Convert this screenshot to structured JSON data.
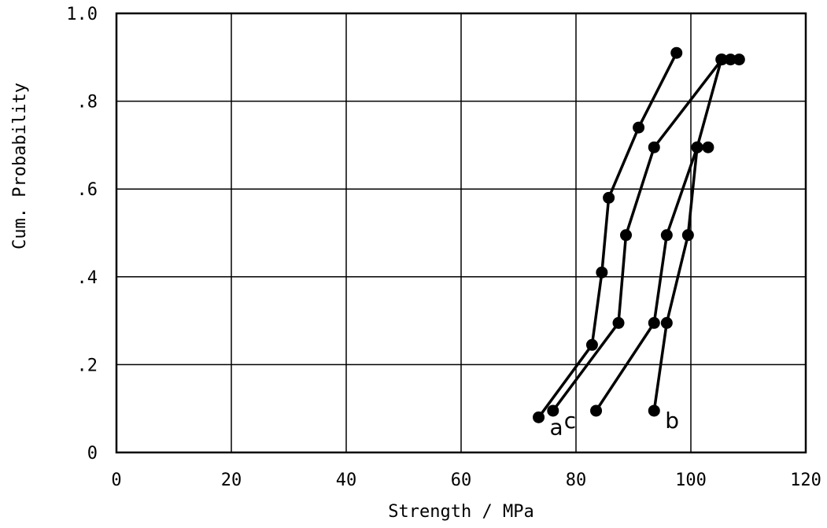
{
  "chart_data": {
    "type": "line",
    "title": "",
    "xlabel": "Strength / MPa",
    "ylabel": "Cum. Probability",
    "xlim": [
      0,
      120
    ],
    "ylim": [
      0,
      1.0
    ],
    "x_ticks": [
      0,
      20,
      40,
      60,
      80,
      100,
      120
    ],
    "x_tick_labels": [
      "0",
      "20",
      "40",
      "60",
      "80",
      "100",
      "120"
    ],
    "y_ticks": [
      0,
      0.2,
      0.4,
      0.6,
      0.8,
      1.0
    ],
    "y_tick_labels": [
      "0",
      ".2",
      ".4",
      ".6",
      ".8",
      "1.0"
    ],
    "grid": true,
    "series": [
      {
        "name": "a",
        "x": [
          73.5,
          82.8,
          84.5,
          85.7,
          90.9,
          97.5
        ],
        "y": [
          0.08,
          0.245,
          0.41,
          0.58,
          0.74,
          0.91
        ]
      },
      {
        "name": "c",
        "x": [
          76,
          87.4,
          88.7,
          93.6,
          105.4,
          106.9,
          108.4
        ],
        "y": [
          0.095,
          0.295,
          0.495,
          0.695,
          0.895,
          0.895,
          0.895
        ]
      },
      {
        "name": "b",
        "x": [
          93.6,
          95.8,
          99.5,
          101.1,
          105.3
        ],
        "y": [
          0.095,
          0.295,
          0.495,
          0.695,
          0.895
        ]
      },
      {
        "name": "",
        "x": [
          83.5,
          93.6,
          95.8,
          101.1,
          103
        ],
        "y": [
          0.095,
          0.295,
          0.495,
          0.695,
          0.695
        ]
      }
    ]
  }
}
